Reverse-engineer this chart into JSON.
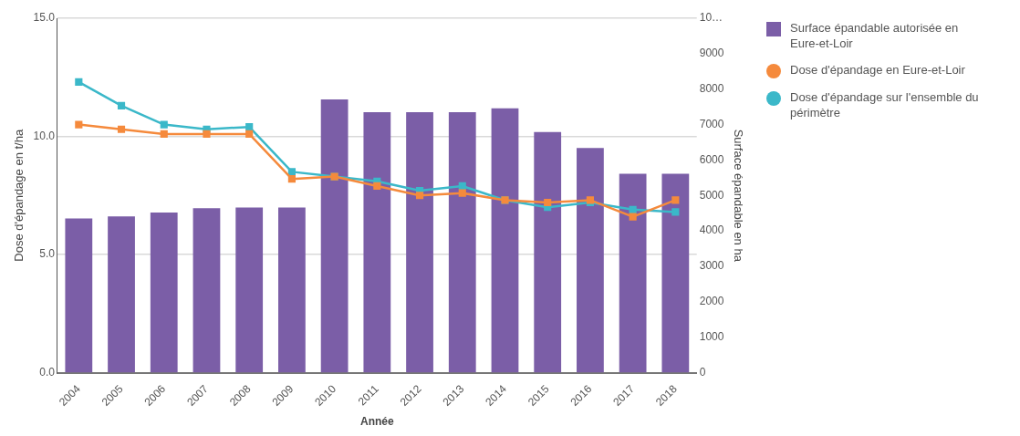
{
  "chart_data": {
    "type": "bar",
    "categories": [
      "2004",
      "2005",
      "2006",
      "2007",
      "2008",
      "2009",
      "2010",
      "2011",
      "2012",
      "2013",
      "2014",
      "2015",
      "2016",
      "2017",
      "2018"
    ],
    "xlabel": "Année",
    "ylabel": "Dose d'épandage en t/ha",
    "y2label": "Surface épandable en ha",
    "series": [
      {
        "name": "Surface épandable autorisée en Eure-et-Loir",
        "axis": "y2",
        "color": "#7b5ea7",
        "values": [
          4350,
          4410,
          4520,
          4640,
          4660,
          4660,
          7710,
          7350,
          7350,
          7350,
          7460,
          6790,
          6340,
          5610,
          5610
        ]
      },
      {
        "name": "Dose d'épandage en Eure-et-Loir",
        "type": "line",
        "color": "#f58a3c",
        "values": [
          10.5,
          10.3,
          10.1,
          10.1,
          10.1,
          8.2,
          8.3,
          7.9,
          7.5,
          7.6,
          7.3,
          7.2,
          7.3,
          6.6,
          7.3
        ]
      },
      {
        "name": "Dose d'épandage sur l'ensemble du périmètre",
        "type": "line",
        "color": "#3bb8c9",
        "values": [
          12.3,
          11.3,
          10.5,
          10.3,
          10.4,
          8.5,
          8.3,
          8.1,
          7.7,
          7.9,
          7.3,
          7.0,
          7.2,
          6.9,
          6.8
        ]
      }
    ],
    "ylim": [
      0,
      15
    ],
    "yticks": [
      {
        "value": 0,
        "label": "0.0"
      },
      {
        "value": 5,
        "label": "5.0"
      },
      {
        "value": 10,
        "label": "10.0"
      },
      {
        "value": 15,
        "label": "15.0"
      }
    ],
    "y2lim": [
      0,
      10000
    ],
    "y2ticks": [
      0,
      1000,
      2000,
      3000,
      4000,
      5000,
      6000,
      7000,
      8000,
      9000,
      {
        "value": 10000,
        "label": "10…"
      }
    ],
    "grid": "y",
    "legend": "right",
    "marker": "square",
    "line_style": "solid"
  }
}
